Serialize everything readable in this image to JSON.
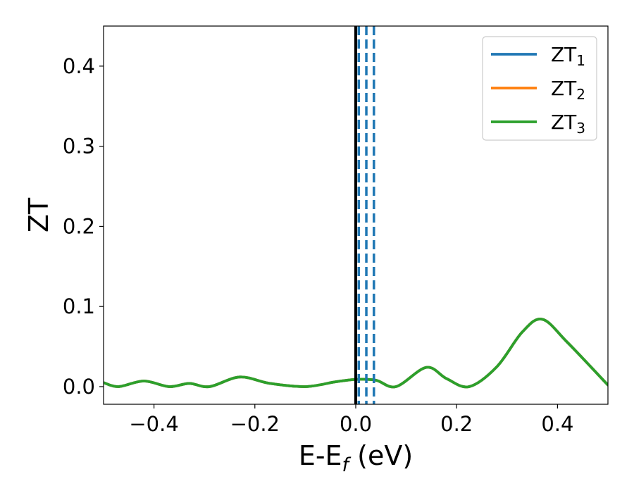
{
  "chart_data": {
    "type": "line",
    "title": "",
    "xlabel": {
      "main": "E-E",
      "sub": "f",
      "rest": " (eV)"
    },
    "ylabel": "ZT",
    "xlim": [
      -0.5,
      0.5
    ],
    "ylim": [
      -0.022,
      0.45
    ],
    "x_ticks": [
      -0.4,
      -0.2,
      0.0,
      0.2,
      0.4
    ],
    "x_tick_labels": [
      "−0.4",
      "−0.2",
      "0.0",
      "0.2",
      "0.4"
    ],
    "y_ticks": [
      0.0,
      0.1,
      0.2,
      0.3,
      0.4
    ],
    "y_tick_labels": [
      "0.0",
      "0.1",
      "0.2",
      "0.3",
      "0.4"
    ],
    "grid": false,
    "legend_position": "top-right",
    "series": [
      {
        "name": "ZT₁",
        "color": "#1f77b4",
        "x": [
          -0.5,
          -0.47,
          -0.42,
          -0.37,
          -0.33,
          -0.29,
          -0.23,
          -0.17,
          -0.1,
          -0.04,
          0.0,
          0.04,
          0.08,
          0.14,
          0.18,
          0.225,
          0.28,
          0.33,
          0.37,
          0.42,
          0.5
        ],
        "y": [
          0.005,
          0.0,
          0.007,
          0.0,
          0.004,
          0.0,
          0.012,
          0.004,
          0.0,
          0.006,
          0.009,
          0.008,
          0.0,
          0.024,
          0.01,
          0.0,
          0.025,
          0.068,
          0.084,
          0.055,
          0.002
        ]
      },
      {
        "name": "ZT₂",
        "color": "#ff7f0e",
        "x": [
          -0.5,
          -0.47,
          -0.42,
          -0.37,
          -0.33,
          -0.29,
          -0.23,
          -0.17,
          -0.1,
          -0.04,
          0.0,
          0.04,
          0.08,
          0.14,
          0.18,
          0.225,
          0.28,
          0.33,
          0.37,
          0.42,
          0.5
        ],
        "y": [
          0.005,
          0.0,
          0.007,
          0.0,
          0.004,
          0.0,
          0.012,
          0.004,
          0.0,
          0.006,
          0.009,
          0.008,
          0.0,
          0.024,
          0.01,
          0.0,
          0.025,
          0.068,
          0.084,
          0.055,
          0.002
        ]
      },
      {
        "name": "ZT₃",
        "color": "#2ca02c",
        "x": [
          -0.5,
          -0.47,
          -0.42,
          -0.37,
          -0.33,
          -0.29,
          -0.23,
          -0.17,
          -0.1,
          -0.04,
          0.0,
          0.04,
          0.08,
          0.14,
          0.18,
          0.225,
          0.28,
          0.33,
          0.37,
          0.42,
          0.5
        ],
        "y": [
          0.005,
          0.0,
          0.007,
          0.0,
          0.004,
          0.0,
          0.012,
          0.004,
          0.0,
          0.006,
          0.009,
          0.008,
          0.0,
          0.024,
          0.01,
          0.0,
          0.025,
          0.068,
          0.084,
          0.055,
          0.002
        ]
      }
    ],
    "reference_lines": [
      {
        "x": 0.0,
        "style": "solid",
        "color": "#000000"
      },
      {
        "x": 0.006,
        "style": "dashed",
        "color": "#1f77b4"
      },
      {
        "x": 0.021,
        "style": "dashed",
        "color": "#1f77b4"
      },
      {
        "x": 0.036,
        "style": "dashed",
        "color": "#1f77b4"
      }
    ]
  }
}
